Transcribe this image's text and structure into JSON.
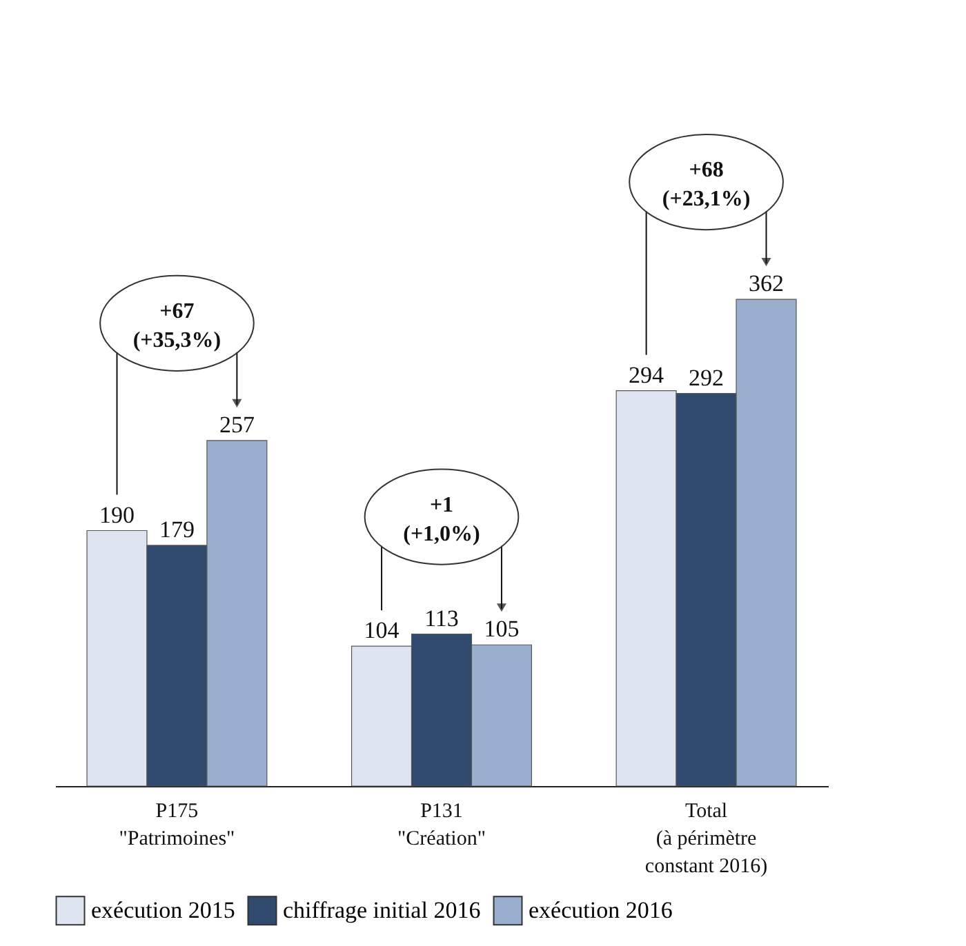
{
  "chart_data": {
    "type": "bar",
    "categories": [
      "P175\n\"Patrimoines\"",
      "P131\n\"Création\"",
      "Total\n(à périmètre\nconstant 2016)"
    ],
    "series": [
      {
        "name": "exécution 2015",
        "color": "#dfe5f0",
        "values": [
          190,
          104,
          294
        ]
      },
      {
        "name": "chiffrage initial 2016",
        "color": "#2f4a6e",
        "values": [
          179,
          113,
          292
        ]
      },
      {
        "name": "exécution 2016",
        "color": "#9aafce",
        "values": [
          257,
          105,
          362
        ]
      }
    ],
    "tick_labels": "x",
    "data_labels": true,
    "legend": "bottom",
    "annotations": [
      "+67\n(+35,3%)",
      "+1\n(+1,0%)",
      "+68\n(+23,1%)"
    ]
  }
}
